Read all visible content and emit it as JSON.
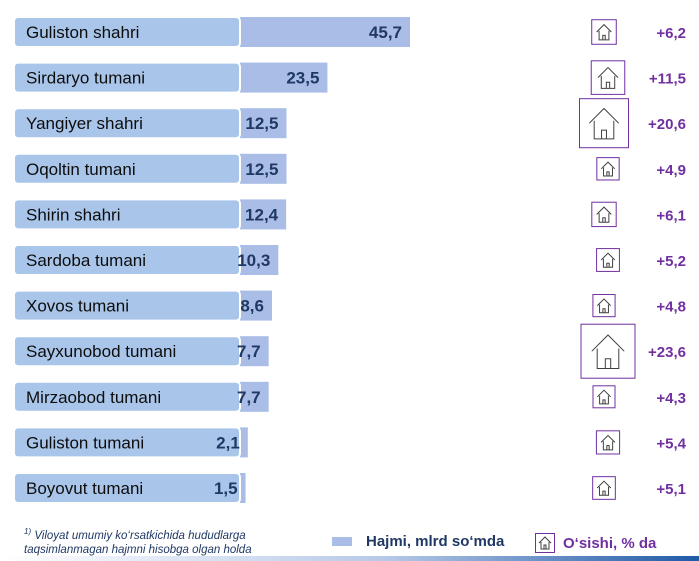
{
  "chart_data": {
    "type": "bar",
    "orientation": "horizontal",
    "categories": [
      "Guliston  shahri",
      "Sirdaryo tumani",
      "Yangiyer shahri",
      "Oqoltin tumani",
      "Shirin shahri",
      "Sardoba tumani",
      "Xovos tumani",
      "Sayxunobod tumani",
      "Mirzaobod  tumani",
      "Guliston tumani",
      "Boyovut tumani"
    ],
    "series": [
      {
        "name": "Hajmi, mlrd so‘mda",
        "values": [
          45.7,
          23.5,
          12.5,
          12.5,
          12.4,
          10.3,
          8.6,
          7.7,
          7.7,
          2.1,
          1.5
        ],
        "value_labels": [
          "45,7",
          "23,5",
          "12,5",
          "12,5",
          "12,4",
          "10,3",
          "8,6",
          "7,7",
          "7,7",
          "2,1",
          "1,5"
        ],
        "color": "#a9bde6"
      },
      {
        "name": "O‘sishi, % da",
        "values": [
          6.2,
          11.5,
          20.6,
          4.9,
          6.1,
          5.2,
          4.8,
          23.6,
          4.3,
          5.4,
          5.1
        ],
        "value_labels": [
          "+6,2",
          "+11,5",
          "+20,6",
          "+4,9",
          "+6,1",
          "+5,2",
          "+4,8",
          "+23,6",
          "+4,3",
          "+5,4",
          "+5,1"
        ],
        "color": "#7030a0",
        "marker": "house-icon"
      }
    ],
    "legend": {
      "position": "bottom",
      "items": [
        "Hajmi, mlrd so‘mda",
        "O‘sishi, % da"
      ]
    },
    "grid": false
  },
  "footnote": {
    "mark": "1)",
    "text": "Viloyat umumiy ko‘rsatkichida hududlarga taqsimlanmagan hajmni hisobga olgan holda"
  },
  "colors": {
    "bar": "#a9bde6",
    "label_box": "#a9c6ea",
    "label_border": "#ffffff",
    "value_text": "#1f3864",
    "growth_text": "#7030a0"
  }
}
